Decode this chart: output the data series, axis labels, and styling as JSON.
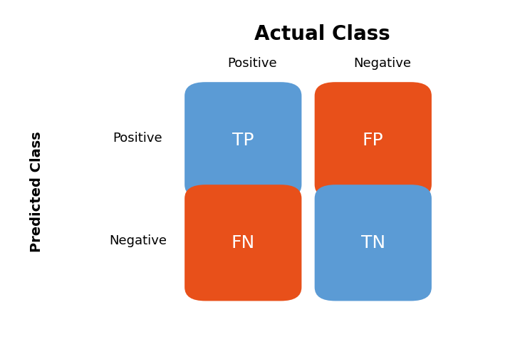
{
  "title": "Actual Class",
  "ylabel": "Predicted Class",
  "col_labels": [
    "Positive",
    "Negative"
  ],
  "row_labels": [
    "Positive",
    "Negative"
  ],
  "cells": [
    [
      "TP",
      "FP"
    ],
    [
      "FN",
      "TN"
    ]
  ],
  "colors": [
    [
      "#5B9BD5",
      "#E8501A"
    ],
    [
      "#E8501A",
      "#5B9BD5"
    ]
  ],
  "text_color": "#FFFFFF",
  "bg_color": "#FFFFFF",
  "title_fontsize": 20,
  "axis_label_fontsize": 14,
  "col_row_label_fontsize": 13,
  "cell_fontsize": 18,
  "fig_width": 7.3,
  "fig_height": 4.8,
  "dpi": 100
}
